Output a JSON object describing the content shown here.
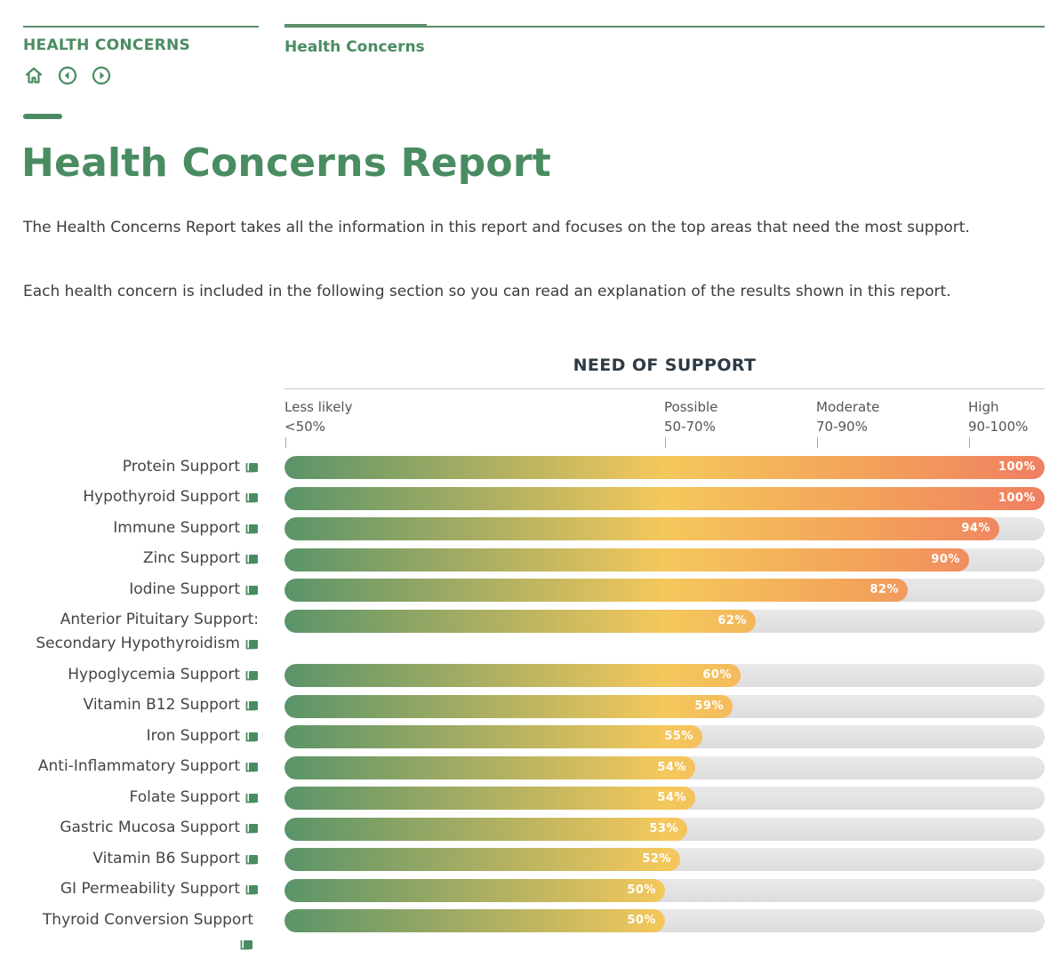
{
  "header": {
    "section_label": "HEALTH CONCERNS",
    "tab_label": "Health Concerns"
  },
  "icons": {
    "home": "home-icon",
    "previous": "circle-left-icon",
    "next": "circle-right-icon",
    "link": "external-link-icon"
  },
  "colors": {
    "brand_green": "#4a8c62",
    "gradient_start": "#5a9469",
    "gradient_mid": "#f4c85c",
    "gradient_end": "#f07f62",
    "track": "#e3e3e3"
  },
  "page": {
    "title": "Health Concerns Report",
    "intro_1": "The Health Concerns Report takes all the information in this report and focuses on the top areas that need the most support.",
    "intro_2": "Each health concern is included in the following section so you can read an explanation of the results shown in this report."
  },
  "chart_data": {
    "type": "bar",
    "orientation": "horizontal",
    "title": "NEED OF SUPPORT",
    "xlim": [
      0,
      100
    ],
    "zones": [
      {
        "label": "Less likely",
        "range": "<50%",
        "start": 0
      },
      {
        "label": "Possible",
        "range": "50-70%",
        "start": 50
      },
      {
        "label": "Moderate",
        "range": "70-90%",
        "start": 70
      },
      {
        "label": "High",
        "range": "90-100%",
        "start": 90
      }
    ],
    "categories": [
      "Protein Support",
      "Hypothyroid Support",
      "Immune Support",
      "Zinc Support",
      "Iodine Support",
      "Anterior Pituitary Support: Secondary Hypothyroidism",
      "Hypoglycemia Support",
      "Vitamin B12 Support",
      "Iron Support",
      "Anti-Inflammatory Support",
      "Folate Support",
      "Gastric Mucosa Support",
      "Vitamin B6 Support",
      "GI Permeability Support",
      "Thyroid Conversion Support"
    ],
    "values": [
      100,
      100,
      94,
      90,
      82,
      62,
      60,
      59,
      55,
      54,
      54,
      53,
      52,
      50,
      50
    ],
    "value_labels": [
      "100%",
      "100%",
      "94%",
      "90%",
      "82%",
      "62%",
      "60%",
      "59%",
      "55%",
      "54%",
      "54%",
      "53%",
      "52%",
      "50%",
      "50%"
    ]
  }
}
